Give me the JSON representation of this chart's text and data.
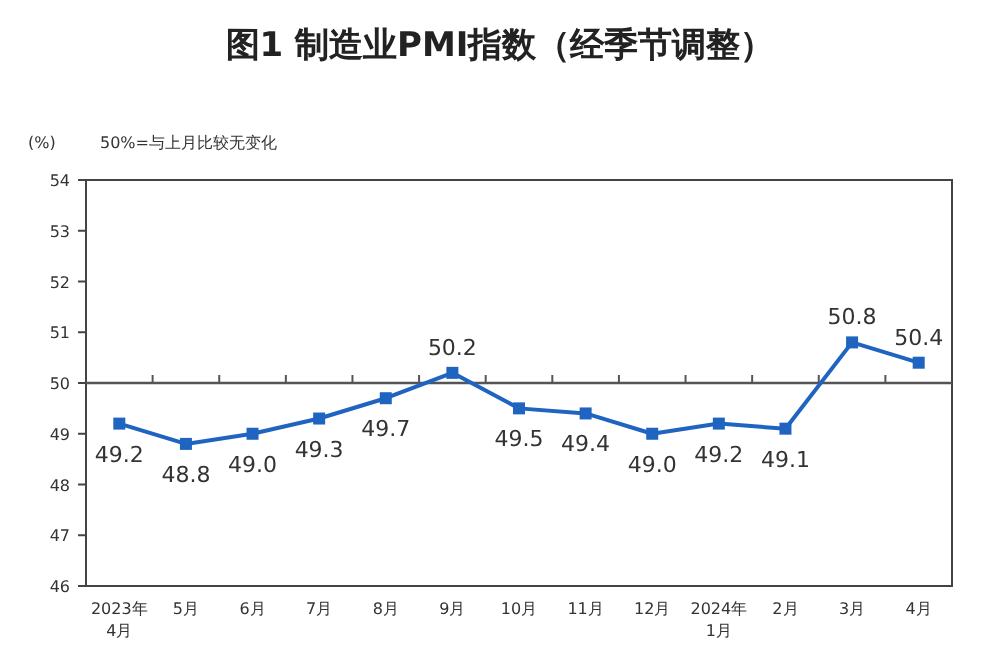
{
  "chart_data": {
    "type": "line",
    "title": "图1  制造业PMI指数（经季节调整）",
    "ylabel": "(%)",
    "annotations": [
      "50%=与上月比较无变化"
    ],
    "categories": [
      "2023年\n4月",
      "5月",
      "6月",
      "7月",
      "8月",
      "9月",
      "10月",
      "11月",
      "12月",
      "2024年\n1月",
      "2月",
      "3月",
      "4月"
    ],
    "series": [
      {
        "color": "#1f64c0",
        "values": [
          49.2,
          48.8,
          49.0,
          49.3,
          49.7,
          50.2,
          49.5,
          49.4,
          49.0,
          49.2,
          49.1,
          50.8,
          50.4
        ],
        "value_labels": [
          "49.2",
          "48.8",
          "49.0",
          "49.3",
          "49.7",
          "50.2",
          "49.5",
          "49.4",
          "49.0",
          "49.2",
          "49.1",
          "50.8",
          "50.4"
        ]
      }
    ],
    "ylim": [
      46,
      54
    ],
    "yticks": [
      46,
      47,
      48,
      49,
      50,
      51,
      52,
      53,
      54
    ],
    "ref_lines": [
      {
        "axis": "y",
        "value": 50,
        "color": "#555555"
      }
    ],
    "marker": "square",
    "line_style": "solid",
    "grid": false
  }
}
